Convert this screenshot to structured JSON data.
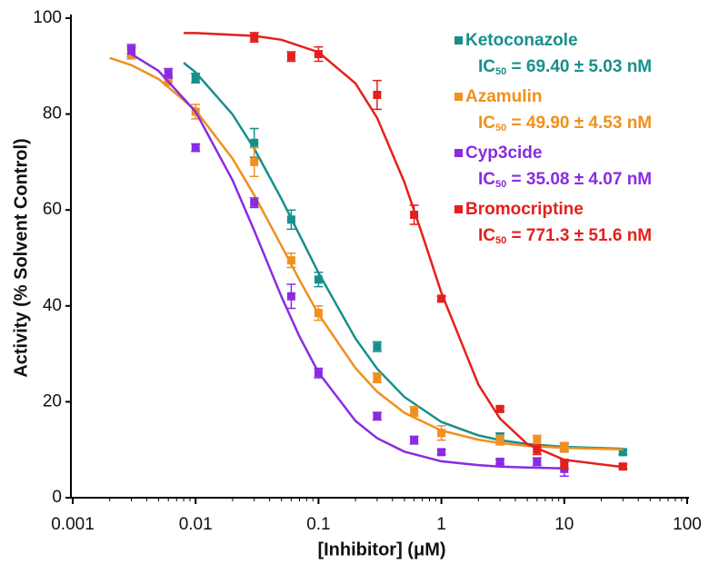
{
  "chart_data": {
    "type": "dose-response",
    "x_label": "[Inhibitor] (μM)",
    "y_label": "Activity (% Solvent Control)",
    "log_x": true,
    "xlim": [
      0.001,
      100
    ],
    "xticks": [
      0.001,
      0.01,
      0.1,
      1,
      10,
      100
    ],
    "ylim": [
      0,
      100
    ],
    "yticks": [
      0,
      20,
      40,
      60,
      80,
      100
    ],
    "series": [
      {
        "name": "Ketoconazole",
        "color": "#17908c",
        "ic50_label": "IC",
        "ic50_sub": "50",
        "ic50_text": " = 69.40 ± 5.03 nM",
        "x": [
          0.003,
          0.01,
          0.03,
          0.06,
          0.1,
          0.3,
          3,
          10,
          30
        ],
        "values": [
          93,
          87.5,
          74,
          58,
          45.5,
          31.5,
          12.5,
          10.5,
          9.5
        ],
        "errors": [
          1,
          1,
          3,
          2,
          1.5,
          1,
          1,
          0.8,
          0.5
        ],
        "fit_x": [
          0.008,
          0.01,
          0.02,
          0.03,
          0.05,
          0.07,
          0.1,
          0.2,
          0.3,
          0.5,
          1,
          2,
          3,
          5,
          10,
          30
        ],
        "fit_values": [
          90.7,
          88.7,
          79.9,
          72.8,
          62.3,
          54.8,
          46.9,
          33.2,
          26.9,
          21.0,
          15.8,
          13.0,
          12.0,
          11.2,
          10.6,
          10.2
        ]
      },
      {
        "name": "Azamulin",
        "color": "#f0901e",
        "ic50_label": "IC",
        "ic50_sub": "50",
        "ic50_text": " = 49.90 ± 4.53 nM",
        "x": [
          0.003,
          0.006,
          0.01,
          0.03,
          0.06,
          0.1,
          0.3,
          0.6,
          1,
          3,
          6,
          10
        ],
        "values": [
          92.5,
          87,
          80.5,
          70,
          49.5,
          38.5,
          25,
          18,
          13.5,
          12,
          12,
          10.5
        ],
        "errors": [
          1,
          1,
          1.5,
          3,
          1.5,
          1.5,
          1,
          1,
          1.5,
          1,
          1,
          1
        ],
        "fit_x": [
          0.002,
          0.003,
          0.005,
          0.01,
          0.02,
          0.03,
          0.05,
          0.07,
          0.1,
          0.2,
          0.3,
          0.5,
          1,
          2,
          3,
          5,
          10,
          30
        ],
        "fit_values": [
          91.7,
          90.2,
          87.3,
          80.8,
          70.7,
          63.1,
          52.5,
          45.4,
          38.3,
          27,
          22.1,
          17.7,
          14.0,
          12.1,
          11.4,
          10.8,
          10.4,
          10.1
        ]
      },
      {
        "name": "Cyp3cide",
        "color": "#8a2be0",
        "ic50_label": "IC",
        "ic50_sub": "50",
        "ic50_text": " = 35.08 ± 4.07 nM",
        "x": [
          0.003,
          0.006,
          0.01,
          0.03,
          0.06,
          0.1,
          0.3,
          0.6,
          1,
          3,
          6,
          10
        ],
        "values": [
          93.5,
          88.5,
          73,
          61.5,
          42,
          26,
          17,
          12,
          9.5,
          7.5,
          7.5,
          6
        ],
        "errors": [
          1,
          1,
          0.8,
          1,
          2.5,
          1,
          0.8,
          0.8,
          0.5,
          0.5,
          0.8,
          1.5
        ],
        "fit_x": [
          0.003,
          0.005,
          0.01,
          0.02,
          0.03,
          0.05,
          0.07,
          0.1,
          0.2,
          0.3,
          0.5,
          1,
          2,
          3,
          5,
          10
        ],
        "fit_values": [
          92.5,
          89.0,
          80.5,
          66.2,
          55.7,
          41.9,
          33.6,
          26.1,
          16,
          12.4,
          9.6,
          7.6,
          6.8,
          6.5,
          6.3,
          6.1
        ]
      },
      {
        "name": "Bromocriptine",
        "color": "#e4201c",
        "ic50_label": "IC",
        "ic50_sub": "50",
        "ic50_text": " = 771.3 ± 51.6 nM",
        "x": [
          0.03,
          0.06,
          0.1,
          0.3,
          0.6,
          1,
          3,
          6,
          10,
          30
        ],
        "values": [
          96,
          92,
          92.5,
          84,
          59,
          41.5,
          18.5,
          10,
          7,
          6.5
        ],
        "errors": [
          1,
          1,
          1.5,
          3,
          2,
          0.5,
          0.5,
          1,
          1,
          0.5
        ],
        "fit_x": [
          0.008,
          0.01,
          0.03,
          0.05,
          0.1,
          0.2,
          0.3,
          0.5,
          0.7,
          1,
          2,
          3,
          5,
          10,
          30
        ],
        "fit_values": [
          96.9,
          96.9,
          96.3,
          95.5,
          92.9,
          86.4,
          79.2,
          65.8,
          54.8,
          42.7,
          23.6,
          16.5,
          11.2,
          7.9,
          6.4
        ]
      }
    ]
  }
}
